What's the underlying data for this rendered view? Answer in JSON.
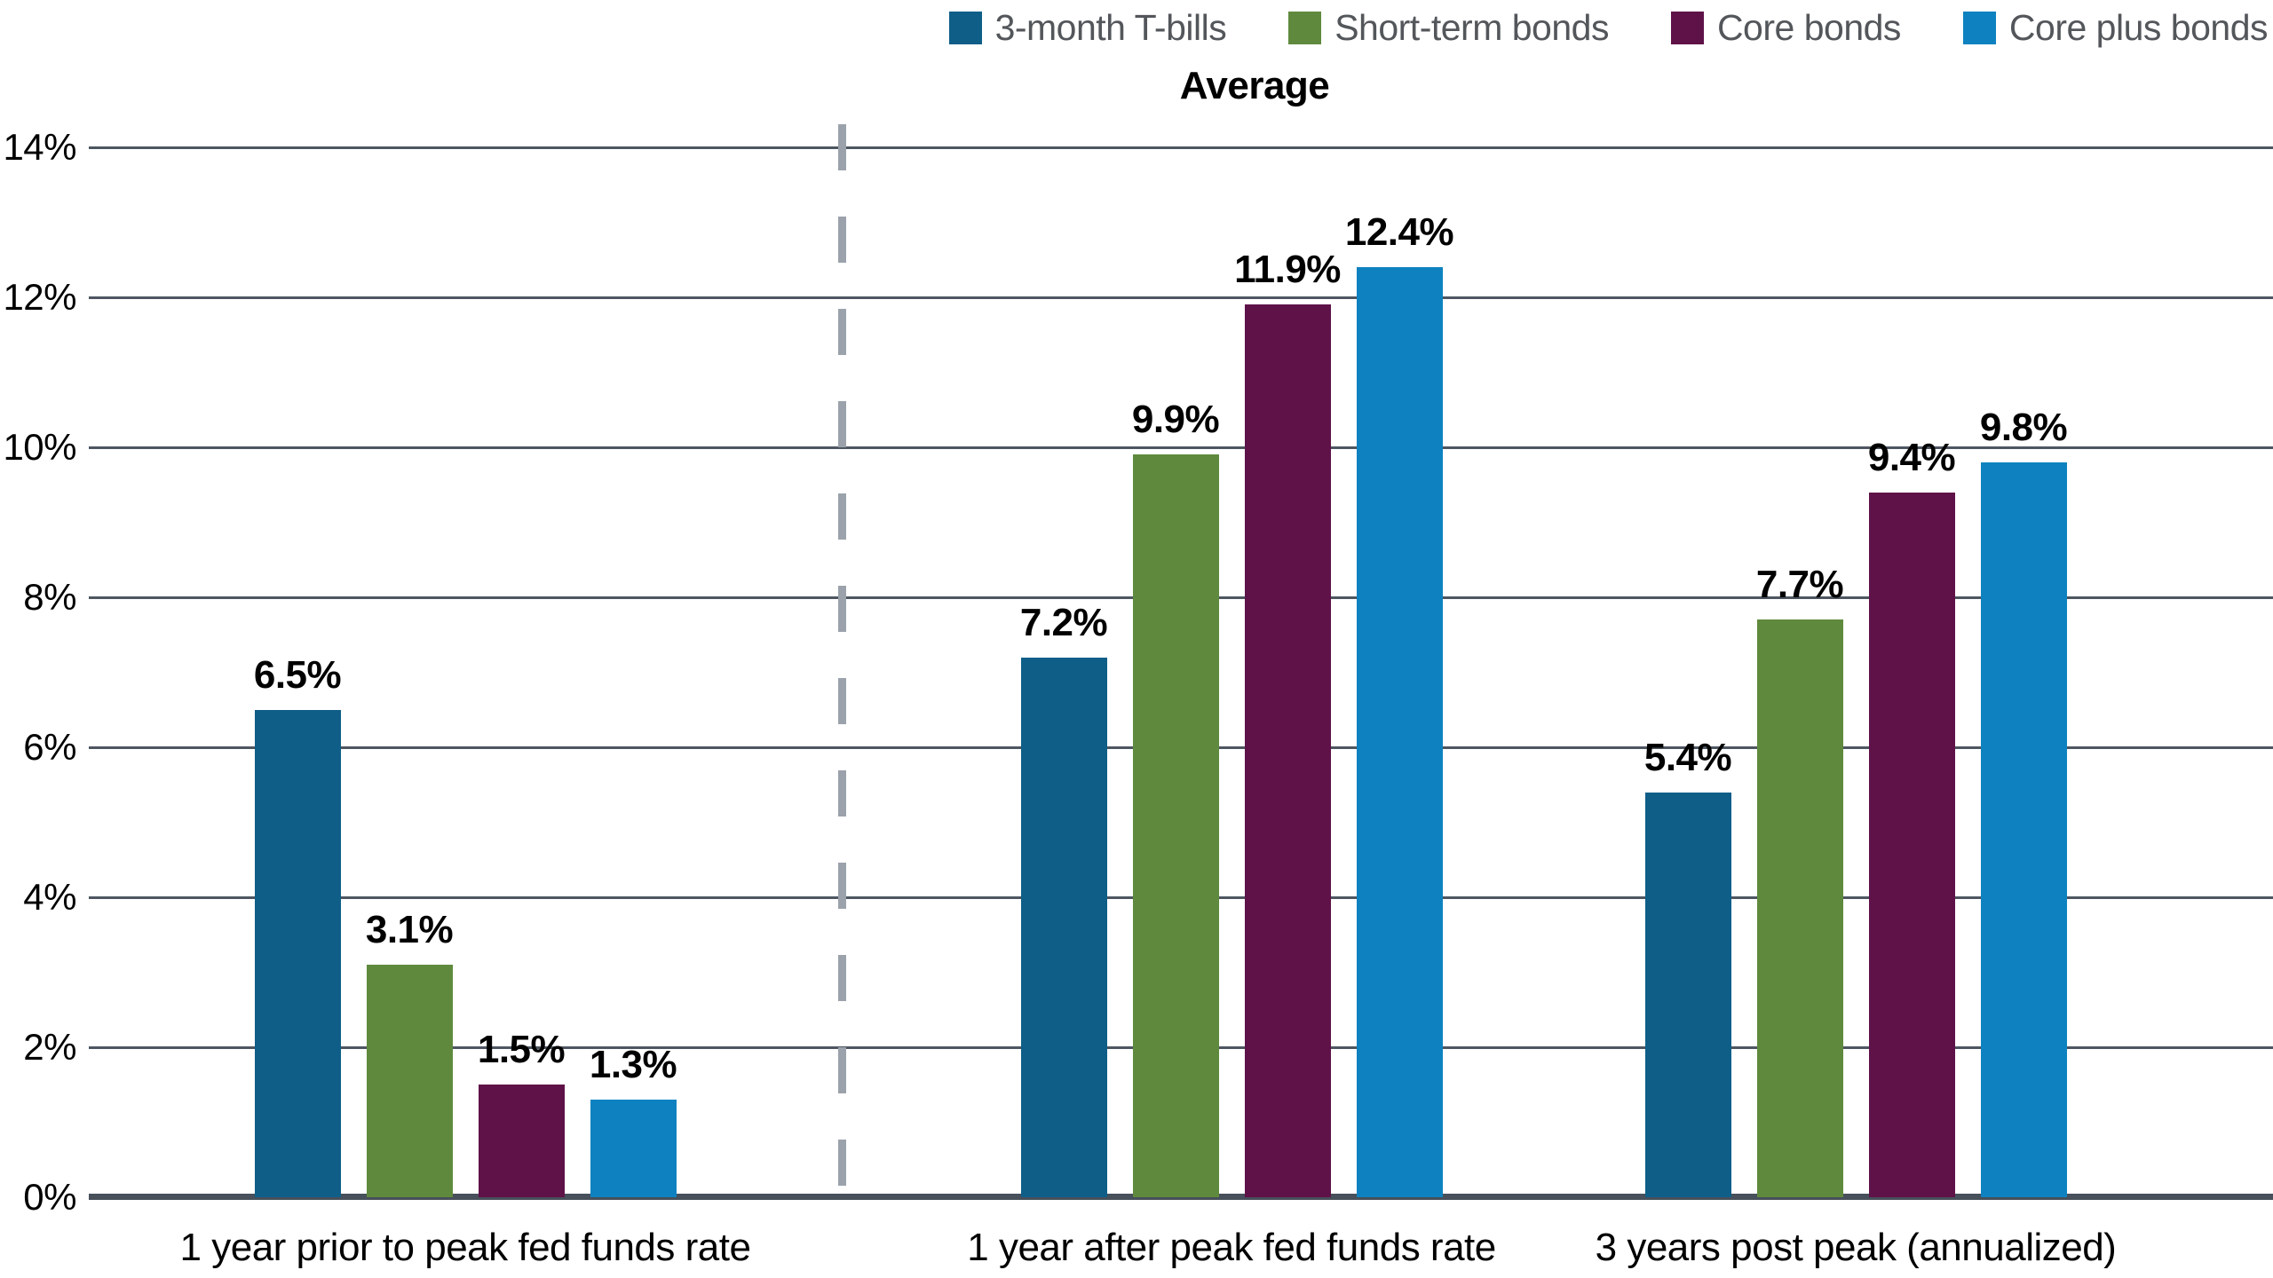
{
  "chart_data": {
    "type": "bar",
    "title": "Average",
    "categories": [
      "1 year prior to peak fed funds rate",
      "1 year after peak fed funds rate",
      "3 years post peak (annualized)"
    ],
    "series": [
      {
        "name": "3-month T-bills",
        "color": "#0E5E88",
        "values": [
          6.5,
          7.2,
          5.4
        ],
        "labels": [
          "6.5%",
          "7.2%",
          "5.4%"
        ]
      },
      {
        "name": "Short-term bonds",
        "color": "#5F8A3D",
        "values": [
          3.1,
          9.9,
          7.7
        ],
        "labels": [
          "3.1%",
          "9.9%",
          "7.7%"
        ]
      },
      {
        "name": "Core bonds",
        "color": "#5F1248",
        "values": [
          1.5,
          11.9,
          9.4
        ],
        "labels": [
          "1.5%",
          "11.9%",
          "9.4%"
        ]
      },
      {
        "name": "Core plus bonds",
        "color": "#0E82C0",
        "values": [
          1.3,
          12.4,
          9.8
        ],
        "labels": [
          "1.3%",
          "12.4%",
          "9.8%"
        ]
      }
    ],
    "ylim": [
      0,
      14
    ],
    "ytick_step": 2,
    "ytick_labels": [
      "0%",
      "2%",
      "4%",
      "6%",
      "8%",
      "10%",
      "12%",
      "14%"
    ],
    "grid": true,
    "legend_position": "top-right",
    "separator_after_category_index": 0
  },
  "colors": {
    "gridline": "#4D5661",
    "axis_baseline": "#47505B",
    "dashed_separator": "#9BA2AB",
    "legend_text": "#53565A",
    "value_label": "#000000"
  }
}
